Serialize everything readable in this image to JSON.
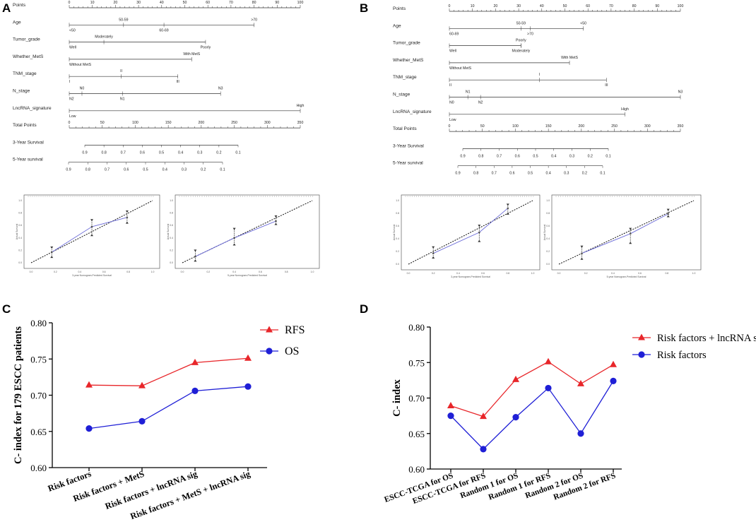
{
  "panel_letters": [
    "A",
    "B",
    "C",
    "D"
  ],
  "chart_data": [
    {
      "panel": "A",
      "type": "nomogram",
      "scales": [
        {
          "name": "Points",
          "labels": [
            [
              "0",
              0
            ],
            [
              "10",
              10
            ],
            [
              "20",
              20
            ],
            [
              "30",
              30
            ],
            [
              "40",
              40
            ],
            [
              "50",
              50
            ],
            [
              "60",
              60
            ],
            [
              "70",
              70
            ],
            [
              "80",
              80
            ],
            [
              "90",
              90
            ],
            [
              "100",
              100
            ]
          ]
        },
        {
          "name": "Age",
          "labels": [
            [
              "<50",
              0
            ],
            [
              "50-59",
              23.5
            ],
            [
              "60-69",
              41
            ],
            [
              ">70",
              80
            ]
          ]
        },
        {
          "name": "Tumor_grade",
          "labels": [
            [
              "Well",
              0
            ],
            [
              "Moderately",
              15
            ],
            [
              "Poorly",
              59
            ]
          ]
        },
        {
          "name": "Whether_MetS",
          "labels": [
            [
              "Without MetS",
              0
            ],
            [
              "With MetS",
              53
            ]
          ]
        },
        {
          "name": "TNM_stage",
          "labels": [
            [
              "I",
              0
            ],
            [
              "II",
              22.5
            ],
            [
              "III",
              47
            ]
          ]
        },
        {
          "name": "N_stage",
          "labels": [
            [
              "N2",
              0
            ],
            [
              "N0",
              5.5
            ],
            [
              "N1",
              23
            ],
            [
              "N3",
              65.5
            ]
          ]
        },
        {
          "name": "LncRNA_signature",
          "labels": [
            [
              "Low",
              0
            ],
            [
              "High",
              100
            ]
          ]
        },
        {
          "name": "Total Points",
          "labels": [
            [
              "0",
              0
            ],
            [
              "50",
              50
            ],
            [
              "100",
              100
            ],
            [
              "150",
              150
            ],
            [
              "200",
              200
            ],
            [
              "250",
              250
            ],
            [
              "300",
              300
            ],
            [
              "350",
              350
            ]
          ]
        },
        {
          "name": "3-Year Survival",
          "labels": [
            [
              "0.9",
              0.9
            ],
            [
              "0.8",
              0.8
            ],
            [
              "0.7",
              0.7
            ],
            [
              "0.6",
              0.6
            ],
            [
              "0.5",
              0.5
            ],
            [
              "0.4",
              0.4
            ],
            [
              "0.3",
              0.3
            ],
            [
              "0.2",
              0.2
            ],
            [
              "0.1",
              0.1
            ]
          ]
        },
        {
          "name": "5-Year survival",
          "labels": [
            [
              "0.9",
              0.9
            ],
            [
              "0.8",
              0.8
            ],
            [
              "0.7",
              0.7
            ],
            [
              "0.6",
              0.6
            ],
            [
              "0.5",
              0.5
            ],
            [
              "0.4",
              0.4
            ],
            [
              "0.3",
              0.3
            ],
            [
              "0.2",
              0.2
            ],
            [
              "0.1",
              0.1
            ]
          ]
        }
      ]
    },
    {
      "panel": "B",
      "type": "nomogram",
      "scales": [
        {
          "name": "Points",
          "labels": [
            [
              "0",
              0
            ],
            [
              "10",
              10
            ],
            [
              "20",
              20
            ],
            [
              "30",
              30
            ],
            [
              "40",
              40
            ],
            [
              "50",
              50
            ],
            [
              "60",
              60
            ],
            [
              "70",
              70
            ],
            [
              "80",
              80
            ],
            [
              "90",
              90
            ],
            [
              "100",
              100
            ]
          ]
        },
        {
          "name": "Age",
          "labels": [
            [
              "60-69",
              0
            ],
            [
              "50-59",
              31
            ],
            [
              ">70",
              35
            ],
            [
              "<50",
              58
            ]
          ]
        },
        {
          "name": "Tumor_grade",
          "labels": [
            [
              "Well",
              0
            ],
            [
              "Poorly",
              31
            ],
            [
              "Moderately",
              31
            ]
          ]
        },
        {
          "name": "Whether_MetS",
          "labels": [
            [
              "Without MetS",
              0
            ],
            [
              "With MetS",
              52
            ]
          ]
        },
        {
          "name": "TNM_stage",
          "labels": [
            [
              "II",
              0
            ],
            [
              "I",
              39
            ],
            [
              "III",
              68
            ]
          ]
        },
        {
          "name": "N_stage",
          "labels": [
            [
              "N0",
              0
            ],
            [
              "N1",
              8
            ],
            [
              "N2",
              13.5
            ],
            [
              "N3",
              100
            ]
          ]
        },
        {
          "name": "LncRNA_signature",
          "labels": [
            [
              "Low",
              0
            ],
            [
              "High",
              76
            ]
          ]
        },
        {
          "name": "Total Points",
          "labels": [
            [
              "0",
              0
            ],
            [
              "50",
              50
            ],
            [
              "100",
              100
            ],
            [
              "150",
              150
            ],
            [
              "200",
              200
            ],
            [
              "250",
              250
            ],
            [
              "300",
              300
            ],
            [
              "350",
              350
            ]
          ]
        },
        {
          "name": "3-Year Survival",
          "labels": [
            [
              "0.9",
              0.9
            ],
            [
              "0.8",
              0.8
            ],
            [
              "0.7",
              0.7
            ],
            [
              "0.6",
              0.6
            ],
            [
              "0.5",
              0.5
            ],
            [
              "0.4",
              0.4
            ],
            [
              "0.3",
              0.3
            ],
            [
              "0.2",
              0.2
            ],
            [
              "0.1",
              0.1
            ]
          ]
        },
        {
          "name": "5-Year survival",
          "labels": [
            [
              "0.9",
              0.9
            ],
            [
              "0.8",
              0.8
            ],
            [
              "0.7",
              0.7
            ],
            [
              "0.6",
              0.6
            ],
            [
              "0.5",
              0.5
            ],
            [
              "0.4",
              0.4
            ],
            [
              "0.3",
              0.3
            ],
            [
              "0.2",
              0.2
            ],
            [
              "0.1",
              0.1
            ]
          ]
        }
      ]
    },
    {
      "panel": "A",
      "type": "calibration",
      "position": "left",
      "xlabel": "3-year Nomogram-Predicted Survival",
      "ylabel": "Actual Survival",
      "xlim": [
        0,
        1
      ],
      "ylim": [
        0,
        1
      ],
      "ticks": [
        "0.0",
        "0.2",
        "0.4",
        "0.6",
        "0.8",
        "1.0"
      ],
      "points": [
        [
          0.17,
          0.17
        ],
        [
          0.5,
          0.58
        ],
        [
          0.79,
          0.73
        ]
      ],
      "errors": [
        [
          0.09,
          0.25
        ],
        [
          0.44,
          0.69
        ],
        [
          0.64,
          0.83
        ]
      ]
    },
    {
      "panel": "A",
      "type": "calibration",
      "position": "right",
      "xlabel": "5-year Nomogram-Predicted Survival",
      "ylabel": "Actual Survival",
      "xlim": [
        0,
        1
      ],
      "ylim": [
        0,
        1
      ],
      "ticks": [
        "0.0",
        "0.2",
        "0.4",
        "0.6",
        "0.8",
        "1.0"
      ],
      "points": [
        [
          0.1,
          0.1
        ],
        [
          0.4,
          0.4
        ],
        [
          0.72,
          0.67
        ]
      ],
      "errors": [
        [
          0.03,
          0.2
        ],
        [
          0.29,
          0.55
        ],
        [
          0.62,
          0.75
        ]
      ]
    },
    {
      "panel": "B",
      "type": "calibration",
      "position": "left",
      "xlabel": "3-year Nomogram-Predicted Survival",
      "ylabel": "Actual Survival",
      "xlim": [
        0,
        1
      ],
      "ylim": [
        0,
        1
      ],
      "ticks": [
        "0.0",
        "0.2",
        "0.4",
        "0.6",
        "0.8",
        "1.0"
      ],
      "points": [
        [
          0.2,
          0.17
        ],
        [
          0.57,
          0.5
        ],
        [
          0.8,
          0.88
        ]
      ],
      "errors": [
        [
          0.1,
          0.27
        ],
        [
          0.36,
          0.61
        ],
        [
          0.79,
          0.94
        ]
      ]
    },
    {
      "panel": "B",
      "type": "calibration",
      "position": "right",
      "xlabel": "5-year Nomogram-Predicted Survival",
      "ylabel": "Actual Survival",
      "xlim": [
        0,
        1
      ],
      "ylim": [
        0,
        1
      ],
      "ticks": [
        "0.0",
        "0.2",
        "0.4",
        "0.6",
        "0.8",
        "1.0"
      ],
      "points": [
        [
          0.17,
          0.17
        ],
        [
          0.53,
          0.48
        ],
        [
          0.81,
          0.79
        ]
      ],
      "errors": [
        [
          0.08,
          0.28
        ],
        [
          0.33,
          0.56
        ],
        [
          0.75,
          0.86
        ]
      ]
    },
    {
      "panel": "C",
      "type": "line",
      "title": "",
      "xlabel": "",
      "ylabel": "C- index for 179 ESCC patients",
      "ylim": [
        0.6,
        0.8
      ],
      "yticks": [
        "0.60",
        "0.65",
        "0.70",
        "0.75",
        "0.80"
      ],
      "categories": [
        "Risk factors",
        "Risk factors + MetS",
        "Risk factors + lncRNA sig",
        "Risk factors + MetS + lncRNA sig"
      ],
      "series": [
        {
          "name": "RFS",
          "marker": "triangle",
          "color": "#e8262a",
          "values": [
            0.714,
            0.713,
            0.745,
            0.751
          ]
        },
        {
          "name": "OS",
          "marker": "circle",
          "color": "#1f1fd6",
          "values": [
            0.654,
            0.664,
            0.706,
            0.712
          ]
        }
      ],
      "legend_position": "top-right"
    },
    {
      "panel": "D",
      "type": "line",
      "title": "",
      "xlabel": "",
      "ylabel": "C- index",
      "ylim": [
        0.6,
        0.8
      ],
      "yticks": [
        "0.60",
        "0.65",
        "0.70",
        "0.75",
        "0.80"
      ],
      "categories": [
        "ESCC-TCGA for OS",
        "ESCC-TCGA for RFS",
        "Random 1 for OS",
        "Random 1 for RFS",
        "Random 2 for OS",
        "Random 2 for RFS"
      ],
      "series": [
        {
          "name": "Risk factors + lncRNA sig",
          "marker": "triangle",
          "color": "#e8262a",
          "values": [
            0.689,
            0.674,
            0.726,
            0.751,
            0.72,
            0.747
          ]
        },
        {
          "name": "Risk factors",
          "marker": "circle",
          "color": "#1f1fd6",
          "values": [
            0.675,
            0.628,
            0.673,
            0.714,
            0.65,
            0.724
          ]
        }
      ],
      "legend_position": "top-right"
    }
  ]
}
